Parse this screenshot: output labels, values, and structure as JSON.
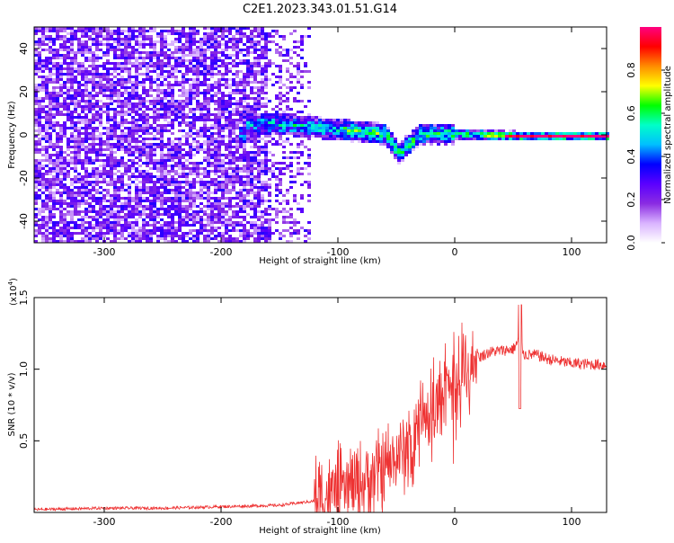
{
  "title": "C2E1.2023.343.01.51.G14",
  "chart_data": [
    {
      "type": "heatmap",
      "xlabel": "Height of straight line (km)",
      "ylabel": "Frequency (Hz)",
      "xlim": [
        -360,
        130
      ],
      "ylim": [
        -50,
        50
      ],
      "xticks": [
        -300,
        -200,
        -100,
        0,
        100
      ],
      "yticks": [
        -40,
        -20,
        0,
        20,
        40
      ],
      "colorbar": {
        "label": "Normalized spectral amplitude",
        "range": [
          0.0,
          1.0
        ],
        "ticks": [
          "0.0",
          "0.2",
          "0.4",
          "0.6",
          "0.8"
        ],
        "colors": [
          "#ffffff",
          "#d9b3ff",
          "#8a2be2",
          "#5a00ff",
          "#0000ff",
          "#00bfff",
          "#00ffc8",
          "#00ff00",
          "#ffff00",
          "#ff8c00",
          "#ff0000",
          "#ff0080"
        ]
      },
      "features": {
        "noise_region_x": [
          -360,
          -125
        ],
        "signal_band": [
          {
            "x": -180,
            "f": 6
          },
          {
            "x": -140,
            "f": 5
          },
          {
            "x": -100,
            "f": 3
          },
          {
            "x": -60,
            "f": 1
          },
          {
            "x": -50,
            "f": -8
          },
          {
            "x": -30,
            "f": 1
          },
          {
            "x": 0,
            "f": 1
          },
          {
            "x": 50,
            "f": 0
          },
          {
            "x": 130,
            "f": 0
          }
        ]
      }
    },
    {
      "type": "line",
      "xlabel": "Height of straight line (km)",
      "ylabel": "SNR (10 * v/v)",
      "yscale_label": "(x10",
      "yscale_exp": "4",
      "yscale_close": ")",
      "xlim": [
        -360,
        130
      ],
      "ylim": [
        0,
        1.5
      ],
      "xticks": [
        -300,
        -200,
        -100,
        0,
        100
      ],
      "yticks": [
        "0.5",
        "1.0",
        "1.5"
      ],
      "color": "#ee3333",
      "series": [
        {
          "x": [
            -360,
            -300,
            -250,
            -200,
            -150,
            -120,
            -100,
            -80,
            -60,
            -40,
            -30,
            -20,
            -10,
            0,
            10,
            20,
            30,
            40,
            50,
            55,
            60,
            70,
            80,
            100,
            130
          ],
          "y": [
            0.02,
            0.03,
            0.03,
            0.04,
            0.05,
            0.08,
            0.15,
            0.2,
            0.3,
            0.45,
            0.6,
            0.7,
            0.8,
            0.9,
            1.0,
            1.08,
            1.12,
            1.13,
            1.14,
            1.2,
            1.1,
            1.1,
            1.07,
            1.04,
            1.03
          ]
        }
      ]
    }
  ]
}
